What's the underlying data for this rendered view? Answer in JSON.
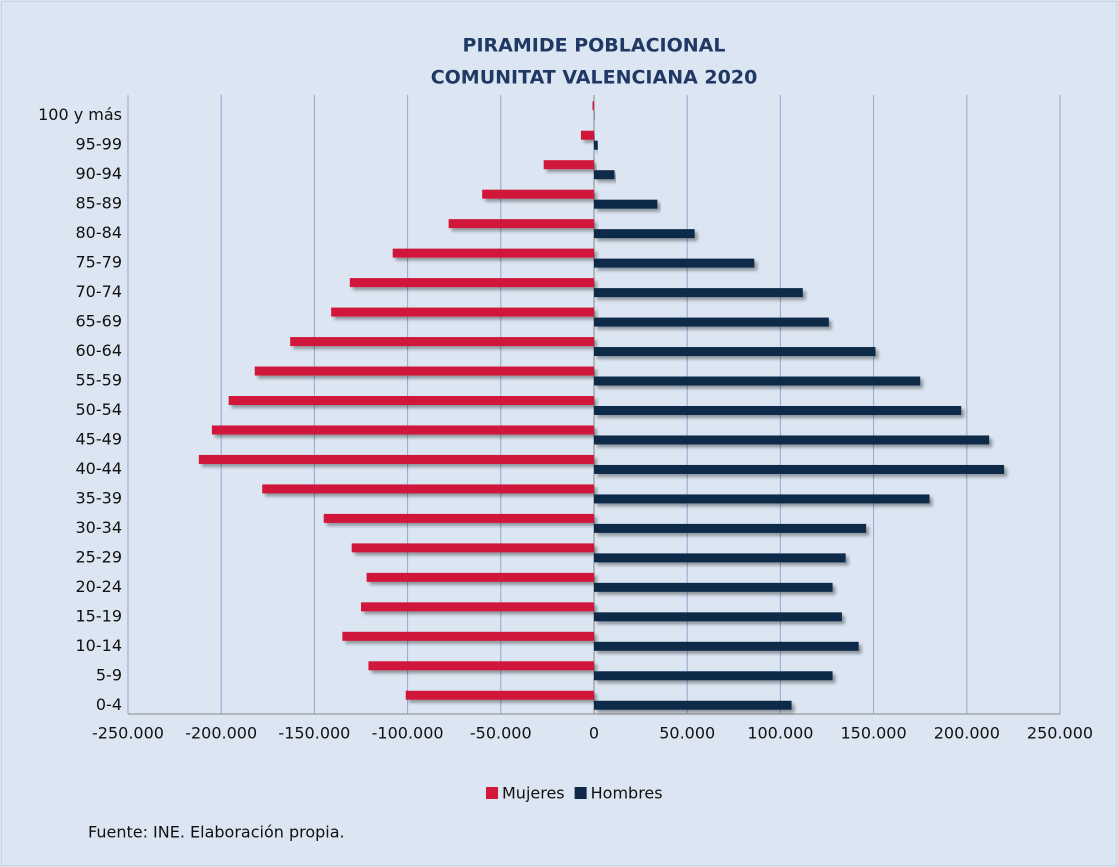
{
  "chart_data": {
    "type": "pyramid",
    "title": "PIRAMIDE POBLACIONAL",
    "subtitle": "COMUNITAT VALENCIANA 2020",
    "note": "Fuente: INE. Elaboración propia.",
    "categories": [
      "0-4",
      "5-9",
      "10-14",
      "15-19",
      "20-24",
      "25-29",
      "30-34",
      "35-39",
      "40-44",
      "45-49",
      "50-54",
      "55-59",
      "60-64",
      "65-69",
      "70-74",
      "75-79",
      "80-84",
      "85-89",
      "90-94",
      "95-99",
      "100 y más"
    ],
    "series": [
      {
        "name": "Mujeres",
        "color": "#d0193a",
        "values": [
          -101000,
          -121000,
          -135000,
          -125000,
          -122000,
          -130000,
          -145000,
          -178000,
          -212000,
          -205000,
          -196000,
          -182000,
          -163000,
          -141000,
          -131000,
          -108000,
          -78000,
          -60000,
          -27000,
          -7000,
          -800
        ]
      },
      {
        "name": "Hombres",
        "color": "#10294a",
        "values": [
          106000,
          128000,
          142000,
          133000,
          128000,
          135000,
          146000,
          180000,
          220000,
          212000,
          197000,
          175000,
          151000,
          126000,
          112000,
          86000,
          54000,
          34000,
          11000,
          2000,
          200
        ]
      }
    ],
    "xlim": [
      -250000,
      250000
    ],
    "xticks": [
      {
        "value": -250000,
        "label": "-250.000"
      },
      {
        "value": -200000,
        "label": "-200.000"
      },
      {
        "value": -150000,
        "label": "-150.000"
      },
      {
        "value": -100000,
        "label": "-100.000"
      },
      {
        "value": -50000,
        "label": "-50.000"
      },
      0,
      {
        "value": 50000,
        "label": "50.000"
      },
      {
        "value": 100000,
        "label": "100.000"
      },
      {
        "value": 150000,
        "label": "150.000"
      },
      {
        "value": 200000,
        "label": "200.000"
      },
      {
        "value": 250000,
        "label": "250.000"
      }
    ],
    "grid": true,
    "legend": "bottom"
  }
}
